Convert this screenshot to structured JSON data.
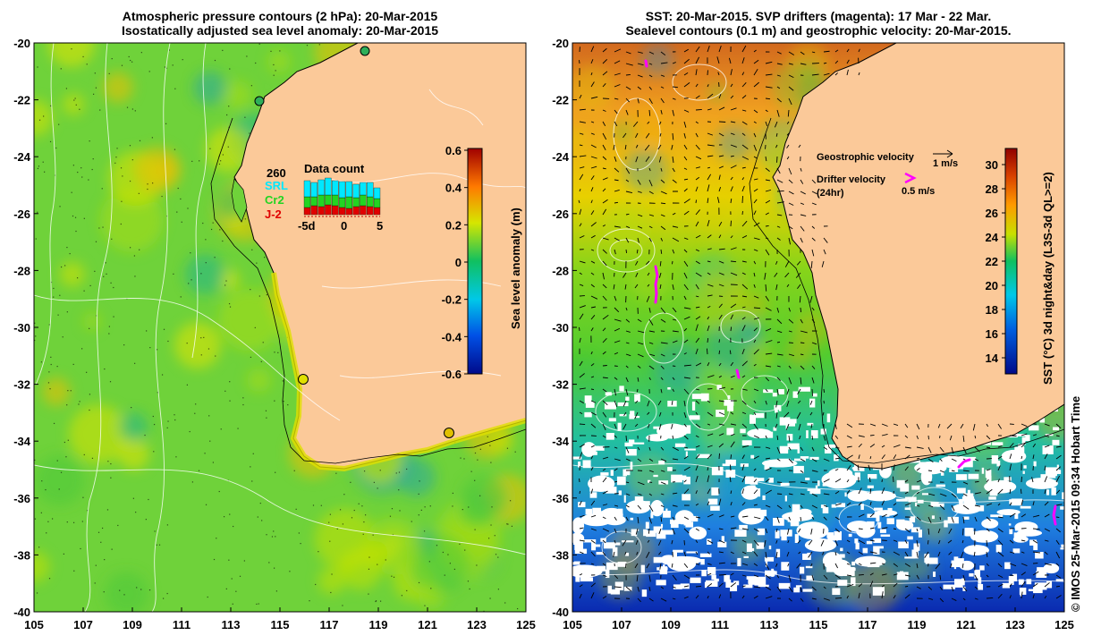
{
  "left_panel": {
    "title_line1": "Atmospheric pressure contours (2 hPa): 20-Mar-2015",
    "title_line2": "Isostatically adjusted sea level anomaly: 20-Mar-2015",
    "colorbar": {
      "label": "Sea level anomaly (m)",
      "ticks": [
        "0.6",
        "0.4",
        "0.2",
        "0",
        "-0.2",
        "-0.4",
        "-0.6"
      ]
    },
    "data_count": {
      "total": "260",
      "title": "Data count",
      "series": [
        {
          "name": "SRL",
          "color": "#00e8ff"
        },
        {
          "name": "Cr2",
          "color": "#22d422"
        },
        {
          "name": "J-2",
          "color": "#e00000"
        }
      ],
      "axis_labels": [
        "-5d",
        "0",
        "5"
      ]
    },
    "colors": {
      "land": "#fbc999",
      "sea": "#6fd23a"
    }
  },
  "right_panel": {
    "title_line1": "SST: 20-Mar-2015. SVP drifters (magenta): 17 Mar - 22 Mar.",
    "title_line2": "Sealevel contours (0.1 m) and geostrophic velocity: 20-Mar-2015.",
    "legend": {
      "geo_label": "Geostrophic velocity",
      "geo_scale": "1 m/s",
      "drifter_label": "Drifter velocity",
      "drifter_sub": "(24hr)",
      "drifter_scale": "0.5 m/s",
      "drifter_color": "#ff00ff"
    },
    "colorbar": {
      "label": "SST (°C) 3d night&day (L3S-3d QL>=2)",
      "ticks": [
        "30",
        "28",
        "26",
        "24",
        "22",
        "20",
        "18",
        "16",
        "14"
      ]
    }
  },
  "axes": {
    "lat_labels": [
      "-20",
      "-22",
      "-24",
      "-26",
      "-28",
      "-30",
      "-32",
      "-34",
      "-36",
      "-38",
      "-40"
    ],
    "lon_labels": [
      "105",
      "107",
      "109",
      "111",
      "113",
      "115",
      "117",
      "119",
      "121",
      "123",
      "125"
    ]
  },
  "credit": "© IMOS 25-Mar-2015 09:34 Hobart Time"
}
